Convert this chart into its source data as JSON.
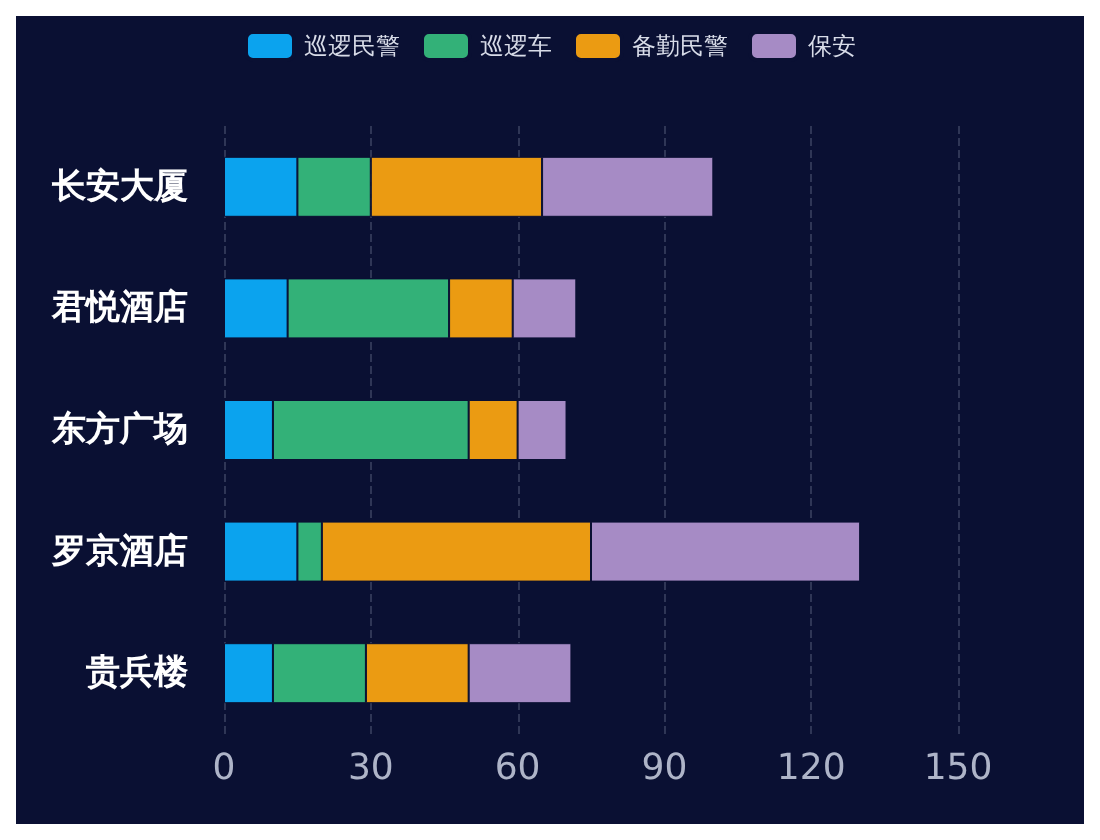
{
  "chart_data": {
    "type": "bar",
    "orientation": "horizontal",
    "stacked": true,
    "categories": [
      "长安大厦",
      "君悦酒店",
      "东方广场",
      "罗京酒店",
      "贵兵楼"
    ],
    "series": [
      {
        "name": "巡逻民警",
        "color": "#0ba3ee",
        "values": [
          15,
          13,
          10,
          15,
          10
        ]
      },
      {
        "name": "巡逻车",
        "color": "#33b178",
        "values": [
          15,
          33,
          40,
          5,
          19
        ]
      },
      {
        "name": "备勤民警",
        "color": "#eb9b12",
        "values": [
          35,
          13,
          10,
          55,
          21
        ]
      },
      {
        "name": "保安",
        "color": "#a68bc5",
        "values": [
          35,
          13,
          10,
          55,
          21
        ]
      }
    ],
    "xlim": [
      0,
      150
    ],
    "xticks": [
      0,
      30,
      60,
      90,
      120,
      150
    ],
    "grid": "x",
    "legend": "top"
  }
}
